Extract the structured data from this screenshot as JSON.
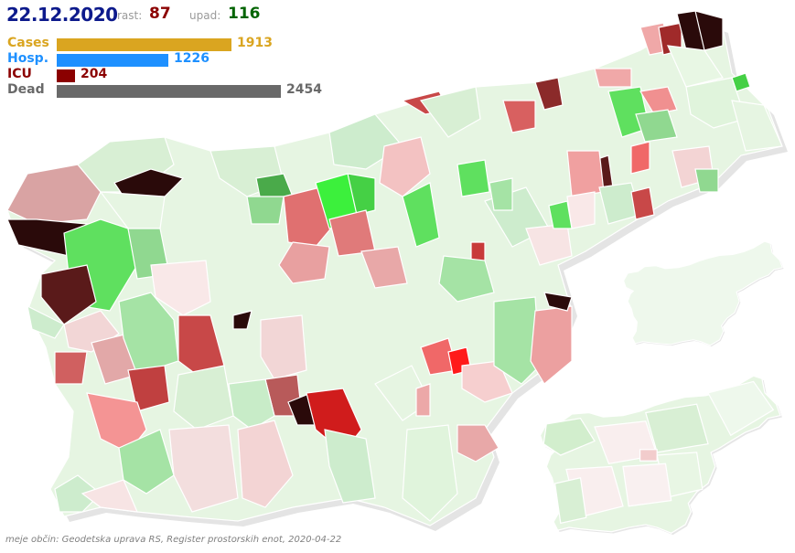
{
  "header": {
    "date": "22.12.2020",
    "rast_label": "rast:",
    "rast_value": "87",
    "upad_label": "upad:",
    "upad_value": "116"
  },
  "legend": [
    {
      "label": "Cases",
      "value": "1913",
      "amount": 1913,
      "color": "#daa520",
      "bar_color": "#daa520"
    },
    {
      "label": "Hosp.",
      "value": "1226",
      "amount": 1226,
      "color": "#1e90ff",
      "bar_color": "#1e90ff"
    },
    {
      "label": "ICU",
      "value": "204",
      "amount": 204,
      "color": "#8b0000",
      "bar_color": "#8b0000"
    },
    {
      "label": "Dead",
      "value": "2454",
      "amount": 2454,
      "color": "#696969",
      "bar_color": "#696969"
    }
  ],
  "colors": {
    "rast": "#8b0000",
    "upad": "#006400",
    "date": "#0d1a8c",
    "strong_growth": "#2a0808",
    "growth": "#c83a3a",
    "mild_growth": "#f2c6c6",
    "neutral": "#f6f6f6",
    "mild_decline": "#cdeccd",
    "decline": "#5fe05f",
    "strong_decline": "#3cf03c"
  },
  "attribution": "meje občin: Geodetska uprava RS, Register prostorskih enot, 2020-04-22"
}
